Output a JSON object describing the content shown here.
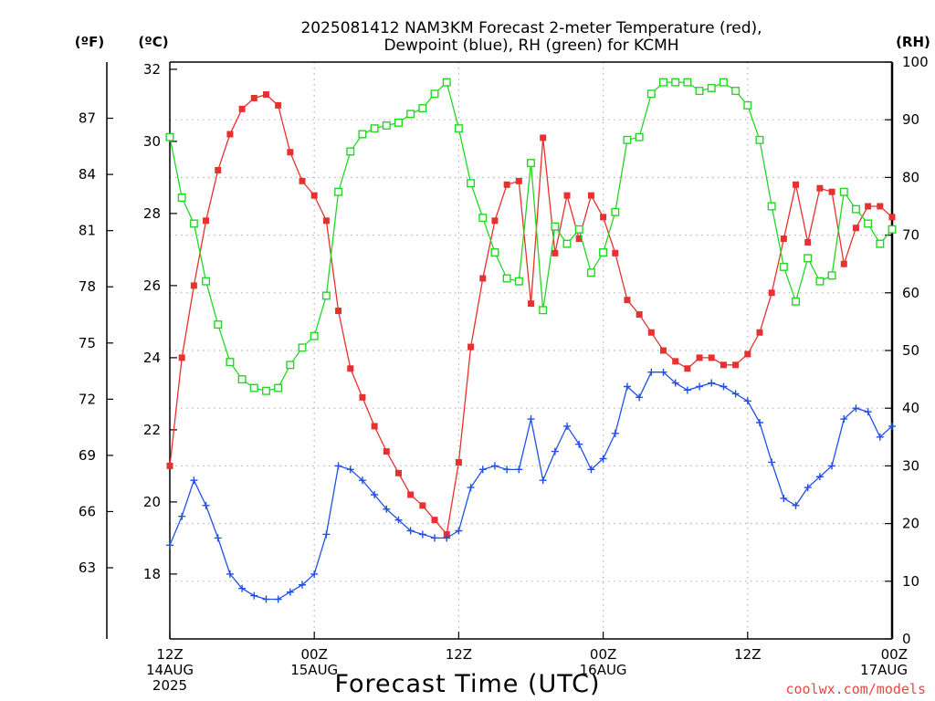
{
  "chart_data": {
    "type": "line",
    "title_lines": [
      "2025081412 NAM3KM Forecast 2-meter Temperature (red),",
      "Dewpoint (blue), RH (green) for KCMH"
    ],
    "xlabel": "Forecast Time (UTC)",
    "credit": "coolwx.com/models",
    "units": {
      "f": "(ºF)",
      "c": "(ºC)",
      "rh": "(RH)"
    },
    "x_range_hours": [
      0,
      60
    ],
    "x_ticks": [
      {
        "h": 0,
        "lines": [
          "12Z",
          "14AUG",
          "2025"
        ]
      },
      {
        "h": 12,
        "lines": [
          "00Z",
          "15AUG"
        ]
      },
      {
        "h": 24,
        "lines": [
          "12Z"
        ]
      },
      {
        "h": 36,
        "lines": [
          "00Z",
          "16AUG"
        ]
      },
      {
        "h": 48,
        "lines": [
          "12Z"
        ]
      },
      {
        "h": 60,
        "lines": [
          "00Z",
          "17AUG"
        ]
      }
    ],
    "left_axis_c": {
      "range": [
        16.2,
        32.2
      ],
      "ticks": [
        18,
        20,
        22,
        24,
        26,
        28,
        30,
        32
      ]
    },
    "far_left_axis_f": {
      "range": [
        59.2,
        90.0
      ],
      "ticks": [
        63,
        66,
        69,
        72,
        75,
        78,
        81,
        84,
        87
      ]
    },
    "right_axis_rh": {
      "range": [
        0,
        100
      ],
      "ticks": [
        0,
        10,
        20,
        30,
        40,
        50,
        60,
        70,
        80,
        90,
        100
      ]
    },
    "series": [
      {
        "name": "2-meter Temperature",
        "axis": "c",
        "color": "#e83030",
        "marker": "filled-square",
        "x": [
          0,
          1,
          2,
          3,
          4,
          5,
          6,
          7,
          8,
          9,
          10,
          11,
          12,
          13,
          14,
          15,
          16,
          17,
          18,
          19,
          20,
          21,
          22,
          23,
          24,
          25,
          26,
          27,
          28,
          29,
          30,
          31,
          32,
          33,
          34,
          35,
          36,
          37,
          38,
          39,
          40,
          41,
          42,
          43,
          44,
          45,
          46,
          47,
          48,
          49,
          50,
          51,
          52,
          53,
          54,
          55,
          56,
          57,
          58,
          59,
          60
        ],
        "values": [
          21.0,
          24.0,
          26.0,
          27.8,
          29.2,
          30.2,
          30.9,
          31.2,
          31.3,
          31.0,
          29.7,
          28.9,
          28.5,
          27.8,
          25.3,
          23.7,
          22.9,
          22.1,
          21.4,
          20.8,
          20.2,
          19.9,
          19.5,
          19.1,
          21.1,
          24.3,
          26.2,
          27.8,
          28.8,
          28.9,
          25.5,
          30.1,
          26.9,
          28.5,
          27.3,
          28.5,
          27.9,
          26.9,
          25.6,
          25.2,
          24.7,
          24.2,
          23.9,
          23.7,
          24.0,
          24.0,
          23.8,
          23.8,
          24.1,
          24.7,
          25.8,
          27.3,
          28.8,
          27.2,
          28.7,
          28.6,
          26.6,
          27.6,
          28.2,
          28.2,
          27.9
        ]
      },
      {
        "name": "Dewpoint",
        "axis": "c",
        "color": "#2050e8",
        "marker": "plus",
        "x": [
          0,
          1,
          2,
          3,
          4,
          5,
          6,
          7,
          8,
          9,
          10,
          11,
          12,
          13,
          14,
          15,
          16,
          17,
          18,
          19,
          20,
          21,
          22,
          23,
          24,
          25,
          26,
          27,
          28,
          29,
          30,
          31,
          32,
          33,
          34,
          35,
          36,
          37,
          38,
          39,
          40,
          41,
          42,
          43,
          44,
          45,
          46,
          47,
          48,
          49,
          50,
          51,
          52,
          53,
          54,
          55,
          56,
          57,
          58,
          59,
          60
        ],
        "values": [
          18.8,
          19.6,
          20.6,
          19.9,
          19.0,
          18.0,
          17.6,
          17.4,
          17.3,
          17.3,
          17.5,
          17.7,
          18.0,
          19.1,
          21.0,
          20.9,
          20.6,
          20.2,
          19.8,
          19.5,
          19.2,
          19.1,
          19.0,
          19.0,
          19.2,
          20.4,
          20.9,
          21.0,
          20.9,
          20.9,
          22.3,
          20.6,
          21.4,
          22.1,
          21.6,
          20.9,
          21.2,
          21.9,
          23.2,
          22.9,
          23.6,
          23.6,
          23.3,
          23.1,
          23.2,
          23.3,
          23.2,
          23.0,
          22.8,
          22.2,
          21.1,
          20.1,
          19.9,
          20.4,
          20.7,
          21.0,
          22.3,
          22.6,
          22.5,
          21.8,
          22.1
        ]
      },
      {
        "name": "RH",
        "axis": "rh",
        "color": "#22d822",
        "marker": "open-square",
        "x": [
          0,
          1,
          2,
          3,
          4,
          5,
          6,
          7,
          8,
          9,
          10,
          11,
          12,
          13,
          14,
          15,
          16,
          17,
          18,
          19,
          20,
          21,
          22,
          23,
          24,
          25,
          26,
          27,
          28,
          29,
          30,
          31,
          32,
          33,
          34,
          35,
          36,
          37,
          38,
          39,
          40,
          41,
          42,
          43,
          44,
          45,
          46,
          47,
          48,
          49,
          50,
          51,
          52,
          53,
          54,
          55,
          56,
          57,
          58,
          59,
          60
        ],
        "values": [
          87.0,
          76.5,
          72.0,
          62.0,
          54.5,
          48.0,
          45.0,
          43.5,
          43.0,
          43.5,
          47.5,
          50.5,
          52.5,
          59.5,
          77.5,
          84.5,
          87.5,
          88.5,
          89.0,
          89.5,
          91.0,
          92.0,
          94.5,
          96.5,
          88.5,
          79.0,
          73.0,
          67.0,
          62.5,
          62.0,
          82.5,
          57.0,
          71.5,
          68.5,
          71.0,
          63.5,
          67.0,
          74.0,
          86.5,
          87.0,
          94.5,
          96.5,
          96.5,
          96.5,
          95.0,
          95.5,
          96.5,
          95.0,
          92.5,
          86.5,
          75.0,
          64.5,
          58.5,
          66.0,
          62.0,
          63.0,
          77.5,
          74.5,
          72.0,
          68.5,
          71.0
        ]
      }
    ]
  }
}
